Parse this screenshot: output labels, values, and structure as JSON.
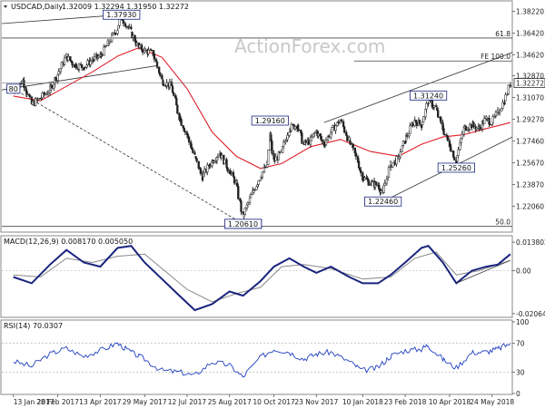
{
  "chart_data": [
    {
      "type": "candlestick",
      "panel": "price",
      "title": "USDCAD,Daily",
      "ohlc_label": "1.32009 1.32294 1.31950 1.32272",
      "watermark": "ActionForex.com",
      "last_price_label": "1.32272",
      "last_price": 1.32272,
      "ylim": [
        1.2,
        1.39
      ],
      "y_ticks": [
        "1.38220",
        "1.36420",
        "1.34620",
        "1.32870",
        "1.31070",
        "1.29270",
        "1.27460",
        "1.25670",
        "1.23870",
        "1.22060"
      ],
      "y_tick_values": [
        1.3822,
        1.3642,
        1.3462,
        1.3287,
        1.3107,
        1.2927,
        1.2746,
        1.2567,
        1.2387,
        1.2206
      ],
      "fib_levels": [
        {
          "label": "61.8",
          "value": 1.36
        },
        {
          "label": "FE 100.0",
          "value": 1.341
        },
        {
          "label": "50.0",
          "value": 1.204
        }
      ],
      "price_labels": [
        {
          "label": "1.37930",
          "value": 1.3793,
          "date": "2017-05-05"
        },
        {
          "label": "1.29160",
          "value": 1.2916,
          "date": "2017-10-06"
        },
        {
          "label": "1.20610",
          "value": 1.2061,
          "date": "2017-09-08"
        },
        {
          "label": "1.31240",
          "value": 1.3124,
          "date": "2018-03-19"
        },
        {
          "label": "1.22460",
          "value": 1.2246,
          "date": "2018-01-31"
        },
        {
          "label": "1.25260",
          "value": 1.2526,
          "date": "2018-04-17"
        },
        {
          "label": "1.20610",
          "value": 1.2061,
          "date": "2017-09-08"
        },
        {
          "label": "80",
          "value": 1.318,
          "date": "2017-01-13"
        }
      ],
      "x_ticks": [
        "13 Jan 2017",
        "28 Feb 2017",
        "13 Apr 2017",
        "29 May 2017",
        "12 Jul 2017",
        "25 Aug 2017",
        "10 Oct 2017",
        "23 Nov 2017",
        "10 Jan 2018",
        "23 Feb 2018",
        "10 Apr 2018",
        "24 May 2018"
      ],
      "series_close": [
        [
          "2017-01-13",
          1.314
        ],
        [
          "2017-01-23",
          1.325
        ],
        [
          "2017-02-01",
          1.305
        ],
        [
          "2017-02-10",
          1.31
        ],
        [
          "2017-02-20",
          1.317
        ],
        [
          "2017-02-28",
          1.33
        ],
        [
          "2017-03-09",
          1.345
        ],
        [
          "2017-03-17",
          1.338
        ],
        [
          "2017-03-27",
          1.336
        ],
        [
          "2017-04-05",
          1.342
        ],
        [
          "2017-04-13",
          1.345
        ],
        [
          "2017-04-21",
          1.355
        ],
        [
          "2017-05-01",
          1.368
        ],
        [
          "2017-05-05",
          1.378
        ],
        [
          "2017-05-15",
          1.365
        ],
        [
          "2017-05-23",
          1.352
        ],
        [
          "2017-05-29",
          1.35
        ],
        [
          "2017-06-07",
          1.347
        ],
        [
          "2017-06-16",
          1.325
        ],
        [
          "2017-06-26",
          1.32
        ],
        [
          "2017-07-04",
          1.295
        ],
        [
          "2017-07-12",
          1.28
        ],
        [
          "2017-07-20",
          1.262
        ],
        [
          "2017-07-28",
          1.245
        ],
        [
          "2017-08-07",
          1.258
        ],
        [
          "2017-08-15",
          1.265
        ],
        [
          "2017-08-25",
          1.25
        ],
        [
          "2017-09-01",
          1.24
        ],
        [
          "2017-09-08",
          1.212
        ],
        [
          "2017-09-18",
          1.232
        ],
        [
          "2017-09-26",
          1.245
        ],
        [
          "2017-10-03",
          1.255
        ],
        [
          "2017-10-06",
          1.28
        ],
        [
          "2017-10-10",
          1.258
        ],
        [
          "2017-10-18",
          1.265
        ],
        [
          "2017-10-26",
          1.285
        ],
        [
          "2017-11-03",
          1.288
        ],
        [
          "2017-11-10",
          1.272
        ],
        [
          "2017-11-17",
          1.275
        ],
        [
          "2017-11-23",
          1.283
        ],
        [
          "2017-12-01",
          1.272
        ],
        [
          "2017-12-08",
          1.282
        ],
        [
          "2017-12-18",
          1.292
        ],
        [
          "2017-12-27",
          1.275
        ],
        [
          "2018-01-05",
          1.258
        ],
        [
          "2018-01-10",
          1.245
        ],
        [
          "2018-01-18",
          1.24
        ],
        [
          "2018-01-26",
          1.238
        ],
        [
          "2018-01-31",
          1.232
        ],
        [
          "2018-02-08",
          1.255
        ],
        [
          "2018-02-16",
          1.26
        ],
        [
          "2018-02-23",
          1.275
        ],
        [
          "2018-03-05",
          1.292
        ],
        [
          "2018-03-12",
          1.288
        ],
        [
          "2018-03-19",
          1.308
        ],
        [
          "2018-03-27",
          1.302
        ],
        [
          "2018-04-03",
          1.285
        ],
        [
          "2018-04-10",
          1.272
        ],
        [
          "2018-04-17",
          1.258
        ],
        [
          "2018-04-25",
          1.285
        ],
        [
          "2018-05-03",
          1.288
        ],
        [
          "2018-05-10",
          1.285
        ],
        [
          "2018-05-18",
          1.293
        ],
        [
          "2018-05-24",
          1.29
        ],
        [
          "2018-05-30",
          1.298
        ],
        [
          "2018-06-06",
          1.308
        ],
        [
          "2018-06-12",
          1.322
        ]
      ],
      "moving_average": [
        [
          "2017-01-13",
          1.312
        ],
        [
          "2017-02-10",
          1.308
        ],
        [
          "2017-03-09",
          1.32
        ],
        [
          "2017-04-05",
          1.332
        ],
        [
          "2017-05-01",
          1.345
        ],
        [
          "2017-05-23",
          1.352
        ],
        [
          "2017-06-16",
          1.344
        ],
        [
          "2017-07-12",
          1.318
        ],
        [
          "2017-08-07",
          1.282
        ],
        [
          "2017-09-01",
          1.262
        ],
        [
          "2017-09-26",
          1.252
        ],
        [
          "2017-10-18",
          1.256
        ],
        [
          "2017-11-17",
          1.27
        ],
        [
          "2017-12-18",
          1.276
        ],
        [
          "2018-01-18",
          1.266
        ],
        [
          "2018-02-16",
          1.262
        ],
        [
          "2018-03-12",
          1.272
        ],
        [
          "2018-04-03",
          1.278
        ],
        [
          "2018-04-25",
          1.28
        ],
        [
          "2018-05-18",
          1.285
        ],
        [
          "2018-06-12",
          1.29
        ]
      ]
    },
    {
      "type": "line",
      "panel": "macd",
      "title": "MACD(12,26,9) 0.008170 0.005050",
      "ylim": [
        -0.022,
        0.016
      ],
      "y_ticks": [
        "0.013802",
        "0.00",
        "-0.020648"
      ],
      "y_tick_values": [
        0.013802,
        0.0,
        -0.020648
      ],
      "macd": [
        [
          "2017-01-13",
          -0.003
        ],
        [
          "2017-02-01",
          -0.006
        ],
        [
          "2017-02-20",
          0.003
        ],
        [
          "2017-03-09",
          0.01
        ],
        [
          "2017-03-27",
          0.004
        ],
        [
          "2017-04-13",
          0.002
        ],
        [
          "2017-05-01",
          0.011
        ],
        [
          "2017-05-15",
          0.012
        ],
        [
          "2017-05-29",
          0.004
        ],
        [
          "2017-06-16",
          -0.004
        ],
        [
          "2017-07-04",
          -0.012
        ],
        [
          "2017-07-20",
          -0.019
        ],
        [
          "2017-08-07",
          -0.016
        ],
        [
          "2017-08-25",
          -0.01
        ],
        [
          "2017-09-08",
          -0.012
        ],
        [
          "2017-09-26",
          -0.005
        ],
        [
          "2017-10-10",
          0.002
        ],
        [
          "2017-10-26",
          0.006
        ],
        [
          "2017-11-10",
          0.002
        ],
        [
          "2017-11-23",
          -0.001
        ],
        [
          "2017-12-08",
          0.002
        ],
        [
          "2017-12-27",
          -0.003
        ],
        [
          "2018-01-10",
          -0.006
        ],
        [
          "2018-01-26",
          -0.006
        ],
        [
          "2018-02-08",
          -0.002
        ],
        [
          "2018-02-23",
          0.004
        ],
        [
          "2018-03-12",
          0.011
        ],
        [
          "2018-03-19",
          0.012
        ],
        [
          "2018-04-03",
          0.004
        ],
        [
          "2018-04-17",
          -0.006
        ],
        [
          "2018-05-03",
          0.0
        ],
        [
          "2018-05-18",
          0.002
        ],
        [
          "2018-05-30",
          0.003
        ],
        [
          "2018-06-12",
          0.008
        ]
      ],
      "signal": [
        [
          "2017-01-13",
          -0.002
        ],
        [
          "2017-02-10",
          -0.003
        ],
        [
          "2017-03-09",
          0.006
        ],
        [
          "2017-04-05",
          0.004
        ],
        [
          "2017-05-01",
          0.007
        ],
        [
          "2017-05-29",
          0.008
        ],
        [
          "2017-06-16",
          0.001
        ],
        [
          "2017-07-12",
          -0.009
        ],
        [
          "2017-08-07",
          -0.015
        ],
        [
          "2017-09-01",
          -0.011
        ],
        [
          "2017-09-26",
          -0.008
        ],
        [
          "2017-10-18",
          0.002
        ],
        [
          "2017-11-10",
          0.003
        ],
        [
          "2017-12-08",
          0.001
        ],
        [
          "2018-01-10",
          -0.004
        ],
        [
          "2018-02-08",
          -0.003
        ],
        [
          "2018-03-05",
          0.006
        ],
        [
          "2018-03-27",
          0.009
        ],
        [
          "2018-04-17",
          -0.002
        ],
        [
          "2018-05-10",
          0.0
        ],
        [
          "2018-06-12",
          0.005
        ]
      ]
    },
    {
      "type": "line",
      "panel": "rsi",
      "title": "RSI(14) 70.0307",
      "ylim": [
        0,
        100
      ],
      "y_ticks": [
        "100",
        "70",
        "30",
        "0"
      ],
      "y_tick_values": [
        100,
        70,
        30,
        0
      ],
      "rsi": [
        [
          "2017-01-13",
          45
        ],
        [
          "2017-02-01",
          38
        ],
        [
          "2017-02-20",
          55
        ],
        [
          "2017-03-09",
          63
        ],
        [
          "2017-03-27",
          52
        ],
        [
          "2017-04-13",
          60
        ],
        [
          "2017-05-01",
          70
        ],
        [
          "2017-05-15",
          58
        ],
        [
          "2017-05-29",
          48
        ],
        [
          "2017-06-16",
          32
        ],
        [
          "2017-07-04",
          30
        ],
        [
          "2017-07-20",
          25
        ],
        [
          "2017-08-07",
          44
        ],
        [
          "2017-08-25",
          40
        ],
        [
          "2017-09-08",
          23
        ],
        [
          "2017-09-26",
          50
        ],
        [
          "2017-10-10",
          62
        ],
        [
          "2017-10-26",
          58
        ],
        [
          "2017-11-10",
          48
        ],
        [
          "2017-11-23",
          55
        ],
        [
          "2017-12-08",
          58
        ],
        [
          "2017-12-27",
          45
        ],
        [
          "2018-01-10",
          32
        ],
        [
          "2018-01-26",
          36
        ],
        [
          "2018-02-08",
          52
        ],
        [
          "2018-02-23",
          60
        ],
        [
          "2018-03-12",
          62
        ],
        [
          "2018-03-19",
          68
        ],
        [
          "2018-04-03",
          48
        ],
        [
          "2018-04-17",
          36
        ],
        [
          "2018-05-03",
          57
        ],
        [
          "2018-05-18",
          58
        ],
        [
          "2018-05-30",
          62
        ],
        [
          "2018-06-12",
          70
        ]
      ]
    }
  ],
  "colors": {
    "candle": "#222222",
    "moving_average": "#e0202a",
    "macd": "#1a237e",
    "signal": "#888888",
    "trendline": "#333333",
    "label_border": "#1a237e"
  }
}
